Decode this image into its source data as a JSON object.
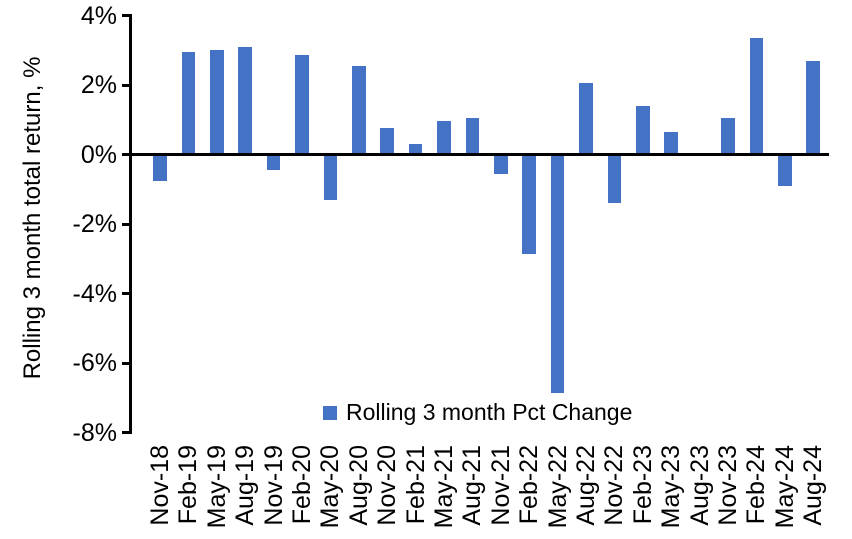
{
  "chart_data": {
    "type": "bar",
    "title": "",
    "xlabel": "",
    "ylabel": "Rolling 3 month total return, %",
    "categories": [
      "Nov-18",
      "Feb-19",
      "May-19",
      "Aug-19",
      "Nov-19",
      "Feb-20",
      "May-20",
      "Aug-20",
      "Nov-20",
      "Feb-21",
      "May-21",
      "Aug-21",
      "Nov-21",
      "Feb-22",
      "May-22",
      "Aug-22",
      "Nov-22",
      "Feb-23",
      "May-23",
      "Aug-23",
      "Nov-23",
      "Feb-24",
      "May-24",
      "Aug-24"
    ],
    "series": [
      {
        "name": "Rolling 3 month Pct Change",
        "values": [
          -0.75,
          2.95,
          3.0,
          3.1,
          -0.45,
          2.85,
          -1.3,
          2.55,
          0.75,
          0.3,
          0.95,
          1.05,
          -0.55,
          -2.85,
          -6.85,
          2.05,
          -1.4,
          1.4,
          0.65,
          0.0,
          1.05,
          3.35,
          -0.9,
          2.7
        ]
      }
    ],
    "ylim": [
      -8,
      4
    ],
    "ytick_step": 2,
    "ytick_labels": [
      "4%",
      "2%",
      "0%",
      "-2%",
      "-4%",
      "-6%",
      "-8%"
    ],
    "grid": false,
    "legend_position": "bottom-center-inside",
    "bar_color": "#4472C4",
    "axis_color": "#000000"
  }
}
